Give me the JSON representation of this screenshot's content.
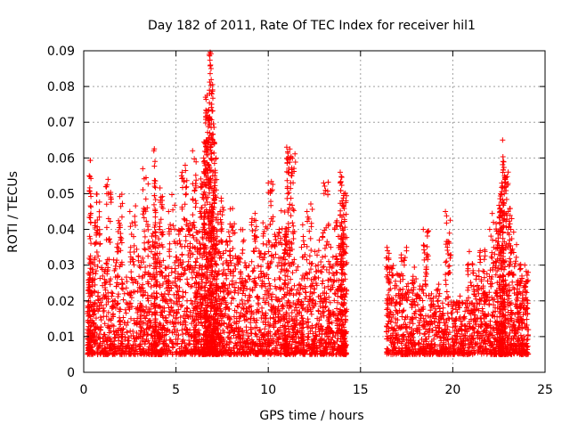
{
  "chart_data": {
    "type": "scatter",
    "title": "Day 182 of 2011, Rate Of TEC Index for receiver hil1",
    "xlabel": "GPS time / hours",
    "ylabel": "ROTI / TECUs",
    "xlim": [
      0,
      25
    ],
    "ylim": [
      0,
      0.09
    ],
    "xticks": [
      0,
      5,
      10,
      15,
      20,
      25
    ],
    "yticks": [
      0,
      0.01,
      0.02,
      0.03,
      0.04,
      0.05,
      0.06,
      0.07,
      0.08,
      0.09
    ],
    "xtick_labels": [
      "0",
      "5",
      "10",
      "15",
      "20",
      "25"
    ],
    "ytick_labels": [
      "0",
      "0.01",
      "0.02",
      "0.03",
      "0.04",
      "0.05",
      "0.06",
      "0.07",
      "0.08",
      "0.09"
    ],
    "grid": true,
    "marker": "+",
    "color": "#ff0000",
    "series": [
      {
        "name": "ROTI",
        "x": [
          0.2,
          0.3,
          0.4,
          0.6,
          0.9,
          1.2,
          1.5,
          1.8,
          2.1,
          2.5,
          2.9,
          3.2,
          3.5,
          3.8,
          3.9,
          4.1,
          4.3,
          4.6,
          5.0,
          5.3,
          5.6,
          5.9,
          6.1,
          6.3,
          6.5,
          6.6,
          6.7,
          6.8,
          6.9,
          7.0,
          7.1,
          7.2,
          7.4,
          7.6,
          7.9,
          8.2,
          8.5,
          8.8,
          9.1,
          9.4,
          9.7,
          10.0,
          10.3,
          10.6,
          10.9,
          11.0,
          11.2,
          11.5,
          11.8,
          12.1,
          12.4,
          12.7,
          13.0,
          13.3,
          13.6,
          13.9,
          14.0,
          14.1,
          16.4,
          16.6,
          16.9,
          17.2,
          17.5,
          17.8,
          18.1,
          18.4,
          18.7,
          19.0,
          19.3,
          19.6,
          19.9,
          20.2,
          20.5,
          20.8,
          21.1,
          21.4,
          21.7,
          22.0,
          22.3,
          22.5,
          22.6,
          22.7,
          22.8,
          23.0,
          23.2,
          23.5,
          23.7,
          23.9
        ],
        "y": [
          0.011,
          0.055,
          0.022,
          0.032,
          0.012,
          0.052,
          0.015,
          0.035,
          0.01,
          0.045,
          0.014,
          0.057,
          0.02,
          0.062,
          0.012,
          0.04,
          0.008,
          0.045,
          0.015,
          0.055,
          0.02,
          0.062,
          0.018,
          0.045,
          0.06,
          0.077,
          0.072,
          0.089,
          0.085,
          0.065,
          0.055,
          0.03,
          0.045,
          0.02,
          0.038,
          0.012,
          0.028,
          0.008,
          0.042,
          0.01,
          0.032,
          0.053,
          0.015,
          0.04,
          0.025,
          0.063,
          0.06,
          0.01,
          0.035,
          0.045,
          0.02,
          0.03,
          0.053,
          0.015,
          0.04,
          0.056,
          0.048,
          0.05,
          0.032,
          0.025,
          0.015,
          0.032,
          0.009,
          0.025,
          0.012,
          0.04,
          0.01,
          0.014,
          0.01,
          0.045,
          0.006,
          0.015,
          0.008,
          0.03,
          0.012,
          0.022,
          0.015,
          0.04,
          0.018,
          0.035,
          0.05,
          0.065,
          0.055,
          0.045,
          0.028,
          0.02,
          0.015,
          0.03
        ],
        "band_y": [
          0.028,
          0.06,
          0.032,
          0.05,
          0.03,
          0.054,
          0.032,
          0.05,
          0.028,
          0.05,
          0.034,
          0.058,
          0.04,
          0.063,
          0.038,
          0.052,
          0.032,
          0.05,
          0.04,
          0.058,
          0.042,
          0.062,
          0.042,
          0.055,
          0.065,
          0.078,
          0.074,
          0.09,
          0.086,
          0.07,
          0.06,
          0.046,
          0.05,
          0.04,
          0.046,
          0.034,
          0.04,
          0.03,
          0.045,
          0.034,
          0.042,
          0.054,
          0.04,
          0.046,
          0.042,
          0.063,
          0.062,
          0.03,
          0.042,
          0.048,
          0.035,
          0.04,
          0.054,
          0.035,
          0.045,
          0.056,
          0.05,
          0.052,
          0.035,
          0.03,
          0.028,
          0.035,
          0.025,
          0.03,
          0.025,
          0.04,
          0.022,
          0.025,
          0.02,
          0.045,
          0.02,
          0.022,
          0.022,
          0.036,
          0.03,
          0.035,
          0.035,
          0.045,
          0.042,
          0.05,
          0.055,
          0.065,
          0.057,
          0.048,
          0.04,
          0.032,
          0.028,
          0.031
        ]
      }
    ]
  }
}
